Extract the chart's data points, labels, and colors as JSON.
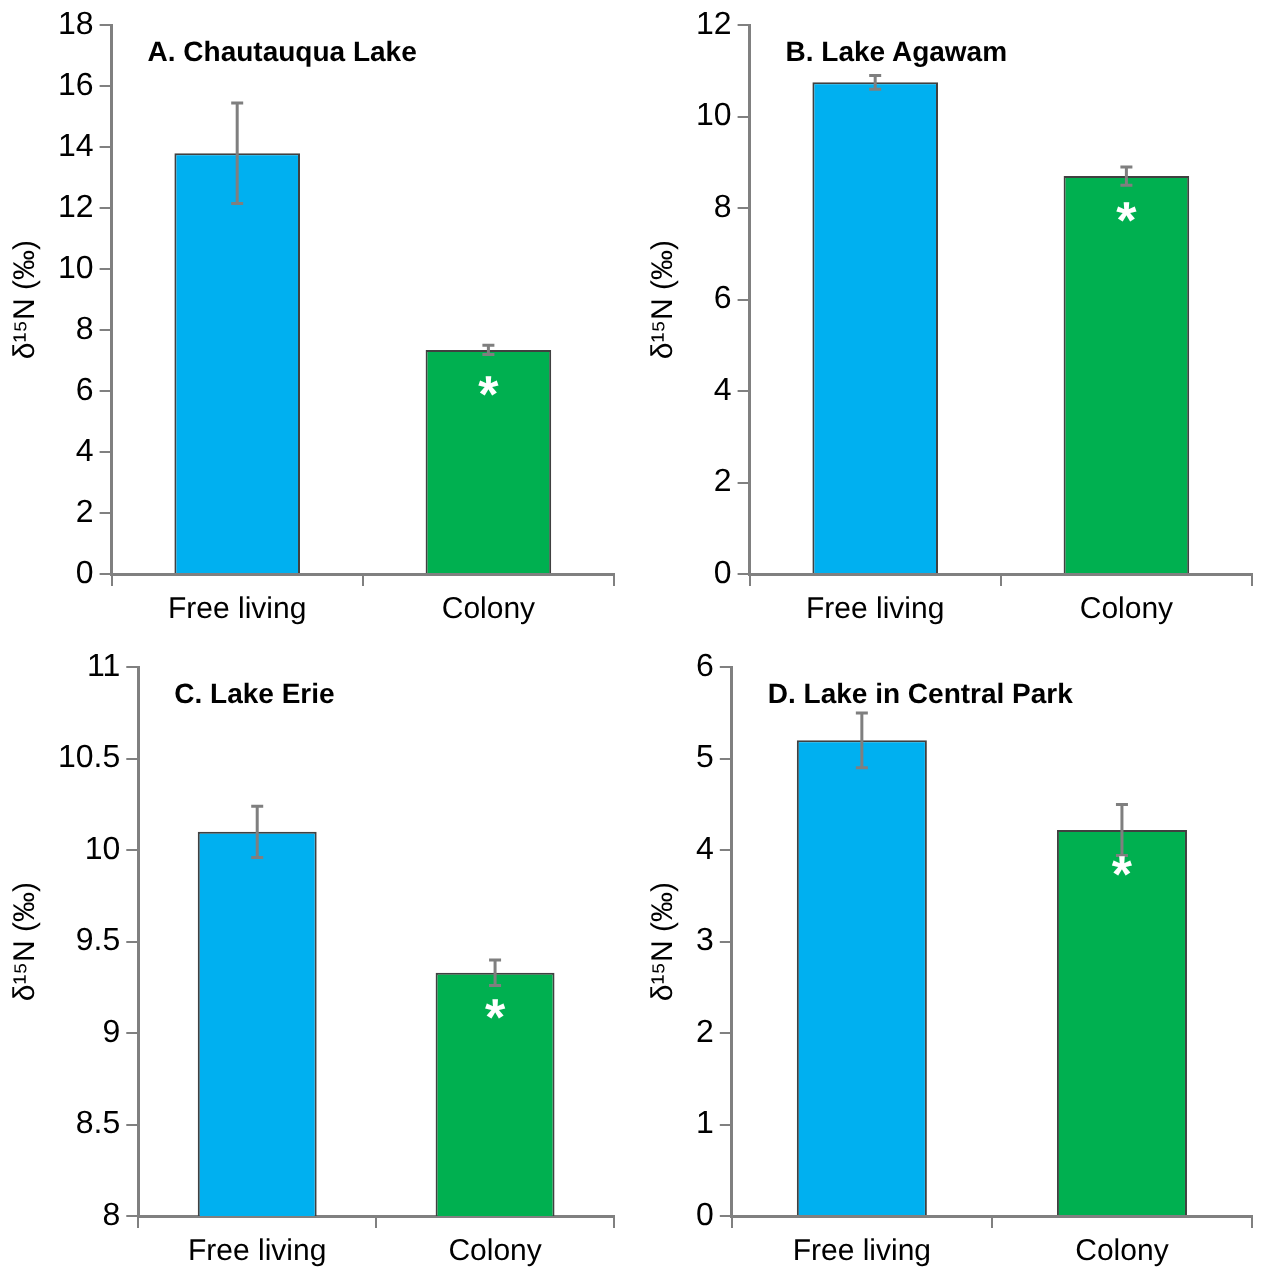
{
  "chart_data": [
    {
      "type": "bar",
      "title": "A. Chautauqua Lake",
      "ylabel": "δ¹⁵N (‰)",
      "categories": [
        "Free living",
        "Colony"
      ],
      "values": [
        13.8,
        7.35
      ],
      "colors": [
        "#00b0f0",
        "#00b050"
      ],
      "errors": [
        1.65,
        0.15
      ],
      "ylim": [
        0,
        18
      ],
      "yticks": [
        0,
        2,
        4,
        6,
        8,
        10,
        12,
        14,
        16,
        18
      ],
      "grid": false,
      "annotations": [
        "*"
      ]
    },
    {
      "type": "bar",
      "title": "B. Lake Agawam",
      "ylabel": "δ¹⁵N (‰)",
      "categories": [
        "Free living",
        "Colony"
      ],
      "values": [
        10.75,
        8.7
      ],
      "colors": [
        "#00b0f0",
        "#00b050"
      ],
      "errors": [
        0.15,
        0.2
      ],
      "ylim": [
        0,
        12
      ],
      "yticks": [
        0,
        2,
        4,
        6,
        8,
        10,
        12
      ],
      "grid": false,
      "annotations": [
        "*"
      ]
    },
    {
      "type": "bar",
      "title": "C. Lake Erie",
      "ylabel": "δ¹⁵N (‰)",
      "categories": [
        "Free living",
        "Colony"
      ],
      "values": [
        10.1,
        9.33
      ],
      "colors": [
        "#00b0f0",
        "#00b050"
      ],
      "errors": [
        0.14,
        0.07
      ],
      "ylim": [
        8,
        11
      ],
      "yticks": [
        8,
        {
          "value": 8.5,
          "label": "8.5"
        },
        9,
        {
          "value": 9.5,
          "label": "9.5"
        },
        10,
        {
          "value": 10.5,
          "label": "10.5"
        },
        11
      ],
      "grid": false,
      "annotations": [
        "*"
      ]
    },
    {
      "type": "bar",
      "title": "D. Lake in Central Park",
      "ylabel": "δ¹⁵N (‰)",
      "categories": [
        "Free living",
        "Colony"
      ],
      "values": [
        5.2,
        4.22
      ],
      "colors": [
        "#00b0f0",
        "#00b050"
      ],
      "errors": [
        0.3,
        0.28
      ],
      "ylim": [
        0,
        6
      ],
      "yticks": [
        0,
        1,
        2,
        3,
        4,
        5,
        6
      ],
      "grid": false,
      "annotations": [
        "*"
      ]
    }
  ]
}
